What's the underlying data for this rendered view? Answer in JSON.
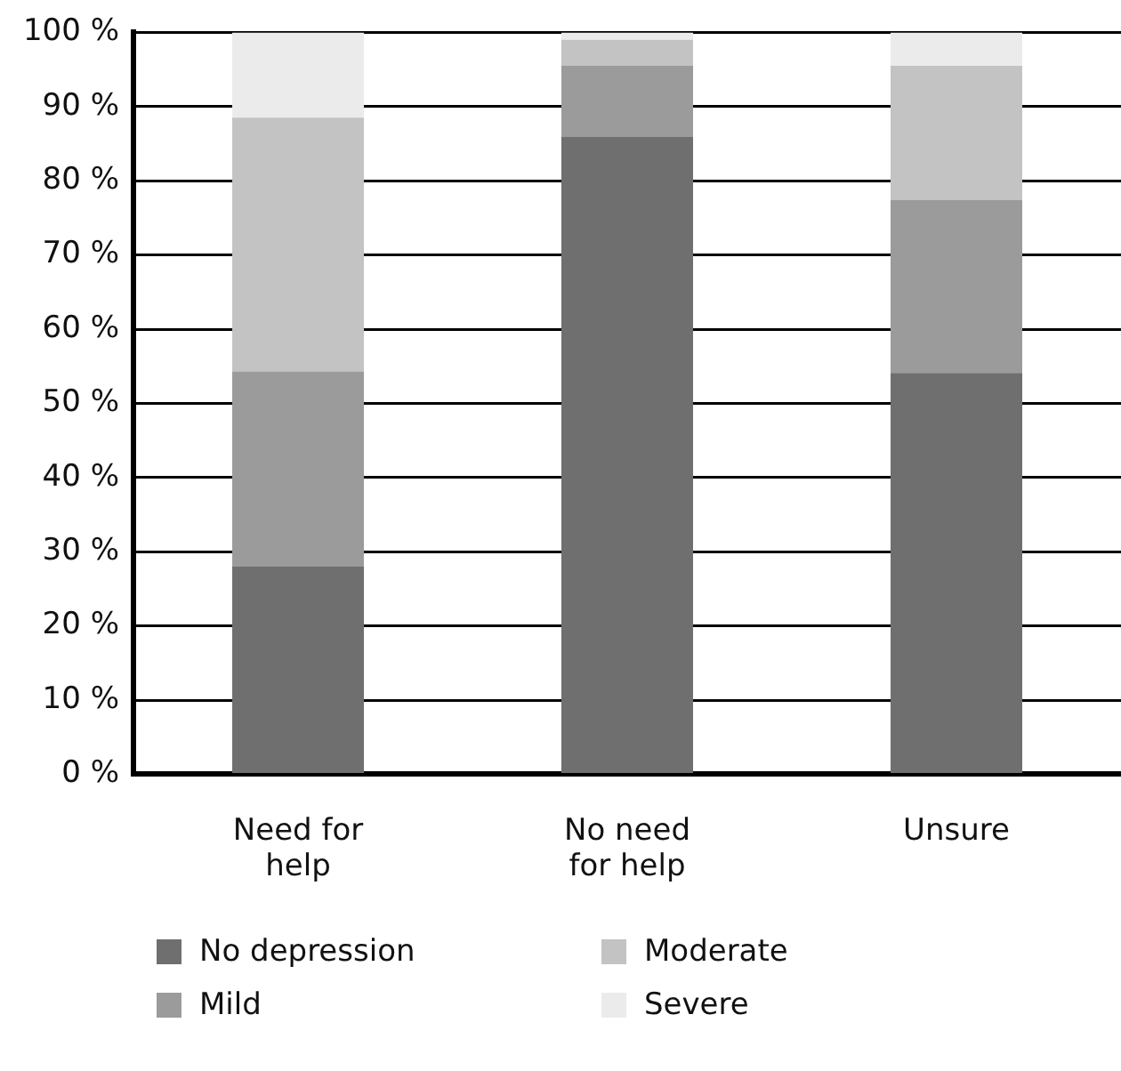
{
  "chart_data": {
    "type": "bar",
    "stacked": true,
    "categories": [
      "Need for help",
      "No need for help",
      "Unsure"
    ],
    "series": [
      {
        "name": "No depression",
        "color": "#6f6f6f",
        "values": [
          28,
          85.9,
          54.1
        ]
      },
      {
        "name": "Mild",
        "color": "#9b9b9b",
        "values": [
          26.3,
          9.6,
          23.3
        ]
      },
      {
        "name": "Moderate",
        "color": "#c3c3c3",
        "values": [
          34.2,
          3.5,
          18.1
        ]
      },
      {
        "name": "Severe",
        "color": "#ebebeb",
        "values": [
          11.5,
          1,
          4.5
        ]
      }
    ],
    "ylim": [
      0,
      100
    ],
    "yticks": [
      {
        "value": 0,
        "label": "0 %"
      },
      {
        "value": 10,
        "label": "10 %"
      },
      {
        "value": 20,
        "label": "20 %"
      },
      {
        "value": 30,
        "label": "30 %"
      },
      {
        "value": 40,
        "label": "40 %"
      },
      {
        "value": 50,
        "label": "50 %"
      },
      {
        "value": 60,
        "label": "60 %"
      },
      {
        "value": 70,
        "label": "70 %"
      },
      {
        "value": 80,
        "label": "80 %"
      },
      {
        "value": 90,
        "label": "90 %"
      },
      {
        "value": 100,
        "label": "100 %"
      }
    ],
    "grid": "y",
    "legend": "bottom"
  }
}
